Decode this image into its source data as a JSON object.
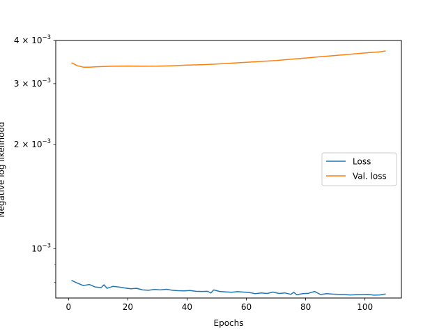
{
  "chart_data": {
    "type": "line",
    "title": "",
    "xlabel": "Epochs",
    "ylabel": "Negative log likelihood",
    "xlim": [
      -4.3,
      112.3
    ],
    "ylim": [
      0.00072,
      0.004
    ],
    "yscale": "log",
    "grid": false,
    "legend_position": "center-right",
    "x_ticks": [
      {
        "value": 0,
        "label": "0"
      },
      {
        "value": 20,
        "label": "20"
      },
      {
        "value": 40,
        "label": "40"
      },
      {
        "value": 60,
        "label": "60"
      },
      {
        "value": 80,
        "label": "80"
      },
      {
        "value": 100,
        "label": "100"
      }
    ],
    "y_major_ticks": [
      {
        "value": 0.001,
        "base": "10",
        "exp": "−3",
        "mult": ""
      },
      {
        "value": 0.002,
        "base": "10",
        "exp": "−3",
        "mult": "2 × "
      },
      {
        "value": 0.003,
        "base": "10",
        "exp": "−3",
        "mult": "3 × "
      },
      {
        "value": 0.004,
        "base": "10",
        "exp": "−3",
        "mult": "4 × "
      }
    ],
    "y_minor_ticks": [
      0.0008,
      0.0009
    ],
    "series": [
      {
        "name": "Loss",
        "color": "#1f77b4",
        "x": [
          1,
          3,
          5,
          7,
          9,
          11,
          12,
          13,
          15,
          17,
          19,
          21,
          23,
          25,
          27,
          29,
          31,
          33,
          35,
          37,
          39,
          41,
          43,
          45,
          47,
          48,
          49,
          51,
          53,
          55,
          57,
          59,
          61,
          63,
          65,
          67,
          69,
          71,
          73,
          75,
          76,
          77,
          79,
          81,
          83,
          85,
          87,
          89,
          91,
          93,
          95,
          97,
          99,
          101,
          103,
          105,
          107
        ],
        "y": [
          0.00081,
          0.000795,
          0.000782,
          0.000788,
          0.000775,
          0.000772,
          0.000786,
          0.000768,
          0.000778,
          0.000775,
          0.00077,
          0.000766,
          0.000768,
          0.00076,
          0.000758,
          0.000762,
          0.00076,
          0.000763,
          0.000758,
          0.000756,
          0.000755,
          0.000757,
          0.000753,
          0.000752,
          0.000753,
          0.000744,
          0.00076,
          0.000752,
          0.00075,
          0.000748,
          0.000751,
          0.000749,
          0.000747,
          0.000741,
          0.000745,
          0.000742,
          0.000749,
          0.000742,
          0.000745,
          0.000738,
          0.000748,
          0.000736,
          0.000741,
          0.000743,
          0.000752,
          0.000737,
          0.000741,
          0.000739,
          0.000738,
          0.000737,
          0.000735,
          0.000736,
          0.000737,
          0.000738,
          0.000734,
          0.000735,
          0.00074
        ]
      },
      {
        "name": "Val. loss",
        "color": "#ff7f0e",
        "x": [
          1,
          3,
          5,
          7,
          9,
          12,
          15,
          20,
          25,
          30,
          35,
          40,
          45,
          50,
          55,
          60,
          65,
          70,
          75,
          80,
          85,
          90,
          95,
          100,
          105,
          107
        ],
        "y": [
          0.00345,
          0.00338,
          0.00335,
          0.003348,
          0.003355,
          0.003365,
          0.00337,
          0.003375,
          0.00337,
          0.003372,
          0.00338,
          0.003395,
          0.003405,
          0.00342,
          0.00344,
          0.00346,
          0.00348,
          0.0035,
          0.00353,
          0.00356,
          0.00359,
          0.00362,
          0.00365,
          0.00368,
          0.00371,
          0.00373
        ]
      }
    ]
  }
}
